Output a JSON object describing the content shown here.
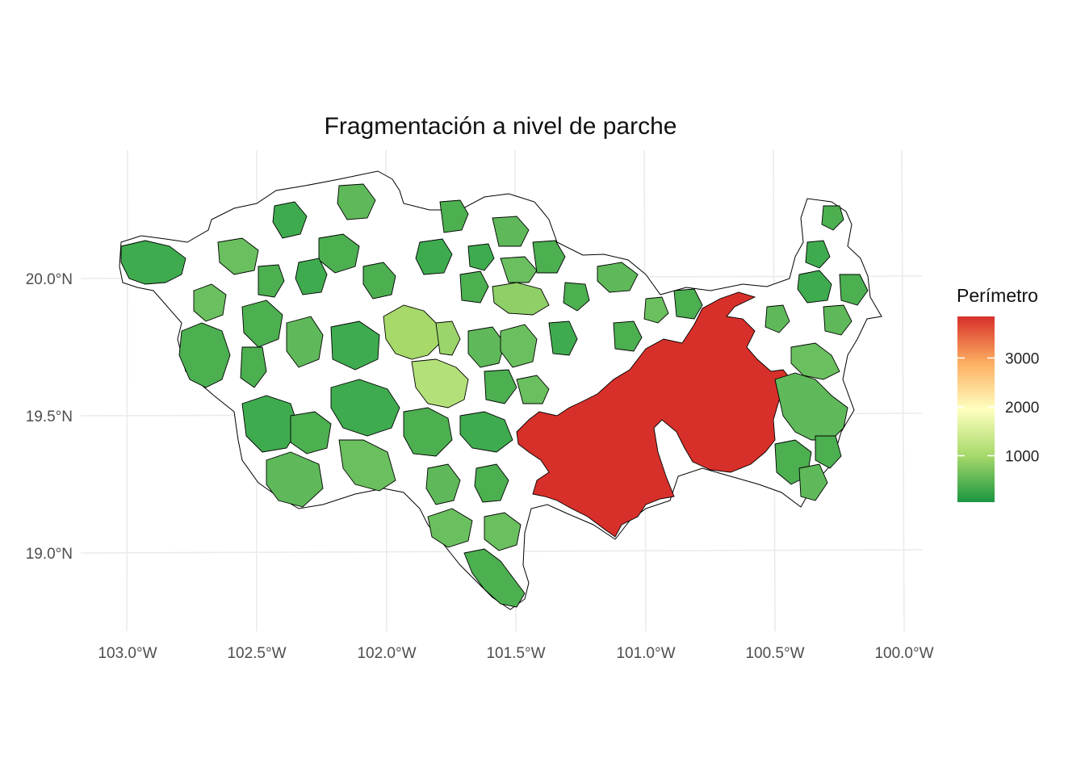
{
  "title": "Fragmentación a nivel de parche",
  "map": {
    "x_ticks": [
      "103.0°W",
      "102.5°W",
      "102.0°W",
      "101.5°W",
      "101.0°W",
      "100.5°W",
      "100.0°W"
    ],
    "y_ticks": [
      "20.0°N",
      "19.5°N",
      "19.0°N"
    ],
    "lon_range": [
      -103.1,
      -99.9
    ],
    "lat_range": [
      18.73,
      20.5
    ],
    "grid": true
  },
  "legend": {
    "title": "Perímetro",
    "ticks": [
      "1000",
      "2000",
      "3000"
    ],
    "tick_values": [
      1000,
      2000,
      3000
    ],
    "range": [
      50,
      3850
    ],
    "colors": [
      "#1a9641",
      "#a6d96a",
      "#ffffbf",
      "#fdae61",
      "#d7302a"
    ],
    "position": "right"
  },
  "colors": {
    "high": "#d7302a",
    "low": "#1a9641",
    "background": "#ffffff",
    "grid": "#ebebeb"
  }
}
